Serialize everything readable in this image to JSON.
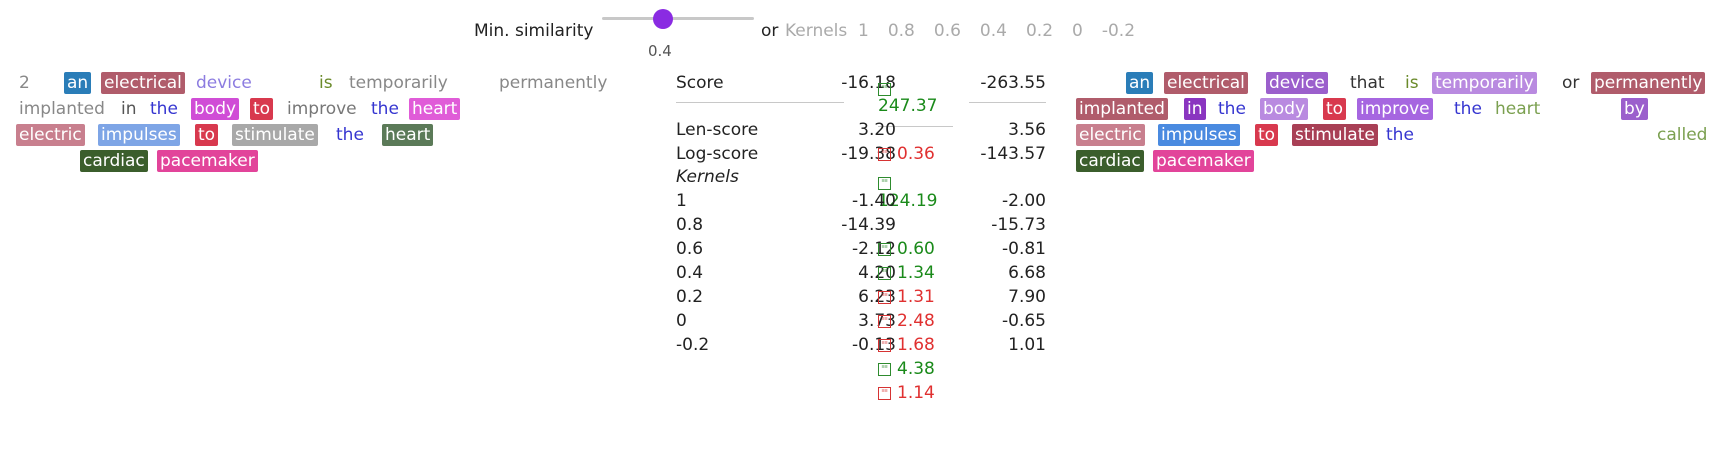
{
  "controls": {
    "min_similarity_label": "Min. similarity",
    "slider_value": "0.4",
    "slider_fraction": 0.4,
    "or_label": "or",
    "kernels_label": "Kernels",
    "kernel_options": [
      "1",
      "0.8",
      "0.6",
      "0.4",
      "0.2",
      "0",
      "-0.2"
    ]
  },
  "left_tokens": [
    {
      "t": "2",
      "c": "#888888"
    },
    {
      "t": "an",
      "bg": "#2a7db8"
    },
    {
      "t": "electrical",
      "bg": "#b05c6b"
    },
    {
      "t": "device",
      "c": "#8c7ce0"
    },
    {
      "t": "is",
      "c": "#6a8a2a"
    },
    {
      "t": "temporarily",
      "c": "#888888"
    },
    {
      "t": "permanently",
      "c": "#888888"
    },
    {
      "t": "implanted",
      "c": "#888888"
    },
    {
      "t": "in",
      "c": "#555555"
    },
    {
      "t": "the",
      "c": "#3535d0"
    },
    {
      "t": "body",
      "bg": "#d04dd6"
    },
    {
      "t": "to",
      "bg": "#d8394e"
    },
    {
      "t": "improve",
      "c": "#777777"
    },
    {
      "t": "the",
      "c": "#3535d0"
    },
    {
      "t": "heart",
      "bg": "#e05cd8"
    },
    {
      "t": "electric",
      "bg": "#c87f8e"
    },
    {
      "t": "impulses",
      "bg": "#7ea5e6"
    },
    {
      "t": "to",
      "bg": "#d8394e"
    },
    {
      "t": "stimulate",
      "bg": "#a8a8a8"
    },
    {
      "t": "the",
      "c": "#3535d0"
    },
    {
      "t": "heart",
      "bg": "#5b7a58"
    },
    {
      "t": "cardiac",
      "bg": "#3b5e2c"
    },
    {
      "t": "pacemaker",
      "bg": "#e2449a"
    }
  ],
  "right_tokens": [
    {
      "t": "an",
      "bg": "#2a7db8"
    },
    {
      "t": "electrical",
      "bg": "#b05c6b"
    },
    {
      "t": "device",
      "bg": "#9b5fcc"
    },
    {
      "t": "that",
      "c": "#333333"
    },
    {
      "t": "is",
      "c": "#6a8a2a"
    },
    {
      "t": "temporarily",
      "bg": "#b98ae0"
    },
    {
      "t": "or",
      "c": "#333333"
    },
    {
      "t": "permanently",
      "bg": "#b05c6b"
    },
    {
      "t": "implanted",
      "bg": "#b05c6b"
    },
    {
      "t": "in",
      "bg": "#8a35c0"
    },
    {
      "t": "the",
      "c": "#3535d0"
    },
    {
      "t": "body",
      "bg": "#b98ae0"
    },
    {
      "t": "to",
      "bg": "#d8394e"
    },
    {
      "t": "improve",
      "bg": "#a666e0"
    },
    {
      "t": "the",
      "c": "#3535d0"
    },
    {
      "t": "heart",
      "c": "#7ba050"
    },
    {
      "t": "by",
      "bg": "#9b5fcc"
    },
    {
      "t": "electric",
      "bg": "#c87f8e"
    },
    {
      "t": "impulses",
      "bg": "#4a8ae0"
    },
    {
      "t": "to",
      "bg": "#d8394e"
    },
    {
      "t": "stimulate",
      "bg": "#a83f55"
    },
    {
      "t": "the",
      "c": "#3535d0"
    },
    {
      "t": "called",
      "c": "#7ba050"
    },
    {
      "t": "cardiac",
      "bg": "#3b5e2c"
    },
    {
      "t": "pacemaker",
      "bg": "#e2449a"
    }
  ],
  "table": {
    "score_label": "Score",
    "score_left": "-16.18",
    "score_delta": "247.37",
    "score_right": "-263.55",
    "len_label": "Len-score",
    "len_left": "3.20",
    "len_right": "3.56",
    "log_label": "Log-score",
    "log_left": "-19.38",
    "log_delta": "0.36",
    "log_right": "-143.57",
    "kernels_label": "Kernels",
    "kernels_delta": "124.19",
    "rows": [
      {
        "k": "1",
        "left": "-1.40",
        "right": "-2.00"
      },
      {
        "k": "0.8",
        "left": "-14.39",
        "right": "-15.73"
      },
      {
        "k": "0.6",
        "left": "-2.12",
        "delta": "0.60",
        "right": "-0.81"
      },
      {
        "k": "0.4",
        "left": "4.20",
        "delta": "1.34",
        "right": "6.68"
      },
      {
        "k": "0.2",
        "left": "6.23",
        "delta": "1.31",
        "right": "7.90"
      },
      {
        "k": "0",
        "left": "3.73",
        "delta": "2.48",
        "right": "-0.65"
      },
      {
        "k": "-0.2",
        "left": "-0.13",
        "delta": "1.68",
        "right": "1.01"
      }
    ],
    "extra_delta_1": "4.38",
    "extra_delta_2": "1.14",
    "badge_up_text": "≡≡",
    "badge_down_text": "≡≡"
  }
}
